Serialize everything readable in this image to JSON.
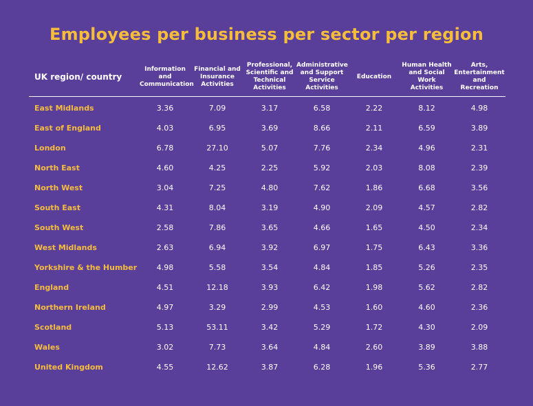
{
  "chart_data": {
    "type": "table",
    "title": "Employees per business per sector per region",
    "row_header": "UK region/ country",
    "columns": [
      "Information and Communication",
      "Financial and Insurance Activities",
      "Professional, Scientific and Technical Activities",
      "Administrative and Support Service Activities",
      "Education",
      "Human Health and Social Work Activities",
      "Arts, Entertainment and Recreation"
    ],
    "rows": [
      {
        "region": "East Midlands",
        "values": [
          "3.36",
          "7.09",
          "3.17",
          "6.58",
          "2.22",
          "8.12",
          "4.98"
        ]
      },
      {
        "region": "East of England",
        "values": [
          "4.03",
          "6.95",
          "3.69",
          "8.66",
          "2.11",
          "6.59",
          "3.89"
        ]
      },
      {
        "region": "London",
        "values": [
          "6.78",
          "27.10",
          "5.07",
          "7.76",
          "2.34",
          "4.96",
          "2.31"
        ]
      },
      {
        "region": "North East",
        "values": [
          "4.60",
          "4.25",
          "2.25",
          "5.92",
          "2.03",
          "8.08",
          "2.39"
        ]
      },
      {
        "region": "North West",
        "values": [
          "3.04",
          "7.25",
          "4.80",
          "7.62",
          "1.86",
          "6.68",
          "3.56"
        ]
      },
      {
        "region": "South East",
        "values": [
          "4.31",
          "8.04",
          "3.19",
          "4.90",
          "2.09",
          "4.57",
          "2.82"
        ]
      },
      {
        "region": "South West",
        "values": [
          "2.58",
          "7.86",
          "3.65",
          "4.66",
          "1.65",
          "4.50",
          "2.34"
        ]
      },
      {
        "region": "West Midlands",
        "values": [
          "2.63",
          "6.94",
          "3.92",
          "6.97",
          "1.75",
          "6.43",
          "3.36"
        ]
      },
      {
        "region": "Yorkshire & the Humber",
        "values": [
          "4.98",
          "5.58",
          "3.54",
          "4.84",
          "1.85",
          "5.26",
          "2.35"
        ]
      },
      {
        "region": "England",
        "values": [
          "4.51",
          "12.18",
          "3.93",
          "6.42",
          "1.98",
          "5.62",
          "2.82"
        ]
      },
      {
        "region": "Northern Ireland",
        "values": [
          "4.97",
          "3.29",
          "2.99",
          "4.53",
          "1.60",
          "4.60",
          "2.36"
        ]
      },
      {
        "region": "Scotland",
        "values": [
          "5.13",
          "53.11",
          "3.42",
          "5.29",
          "1.72",
          "4.30",
          "2.09"
        ]
      },
      {
        "region": "Wales",
        "values": [
          "3.02",
          "7.73",
          "3.64",
          "4.84",
          "2.60",
          "3.89",
          "3.88"
        ]
      },
      {
        "region": "United Kingdom",
        "values": [
          "4.55",
          "12.62",
          "3.87",
          "6.28",
          "1.96",
          "5.36",
          "2.77"
        ]
      }
    ],
    "colors": {
      "background": "#5a3f9a",
      "accent": "#f6bd3d",
      "text": "#ffffff"
    }
  }
}
